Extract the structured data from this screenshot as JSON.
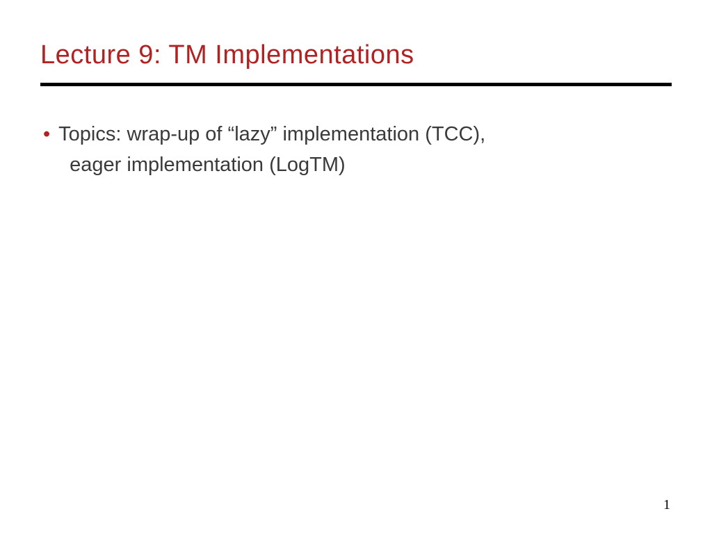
{
  "slide": {
    "title": "Lecture 9: TM Implementations",
    "bullet": {
      "marker": "•",
      "line1": "Topics: wrap-up of “lazy” implementation (TCC),",
      "line2": "eager implementation (LogTM)"
    },
    "page_number": "1"
  },
  "styling": {
    "title_color": "#b22222",
    "title_fontsize": 38,
    "bullet_marker_color": "#b22222",
    "body_text_color": "#3a3a3a",
    "body_fontsize": 29,
    "divider_color": "#000000",
    "divider_thickness": 5,
    "background_color": "#ffffff",
    "page_number_fontsize": 20,
    "page_number_color": "#000000"
  }
}
